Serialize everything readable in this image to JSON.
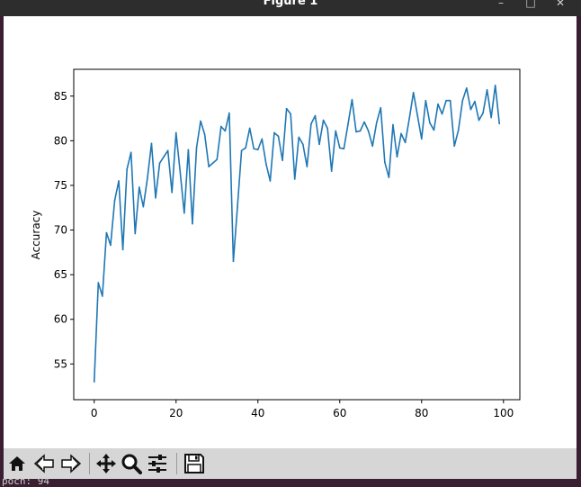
{
  "window": {
    "title": "Figure 1"
  },
  "toolbar": {
    "buttons": [
      {
        "name": "home-button",
        "icon": "home-icon"
      },
      {
        "name": "back-button",
        "icon": "back-arrow-icon"
      },
      {
        "name": "forward-button",
        "icon": "forward-arrow-icon"
      },
      {
        "name": "pan-button",
        "icon": "pan-icon"
      },
      {
        "name": "zoom-button",
        "icon": "magnifier-icon"
      },
      {
        "name": "configure-subplots-button",
        "icon": "sliders-icon"
      },
      {
        "name": "save-button",
        "icon": "floppy-disk-icon"
      }
    ]
  },
  "terminal": {
    "partial_text": "poch: 94"
  },
  "chart_data": {
    "type": "line",
    "title": "",
    "xlabel": "",
    "ylabel": "Accuracy",
    "xlim": [
      -5,
      104
    ],
    "ylim": [
      51,
      88
    ],
    "xticks": [
      0,
      20,
      40,
      60,
      80,
      100
    ],
    "yticks": [
      55,
      60,
      65,
      70,
      75,
      80,
      85
    ],
    "grid": false,
    "line_color": "#1f77b4",
    "series": [
      {
        "x": [
          0,
          1,
          2,
          3,
          4,
          5,
          6,
          7,
          8,
          9,
          10,
          11,
          12,
          13,
          14,
          15,
          16,
          17,
          18,
          19,
          20,
          21,
          22,
          23,
          24,
          25,
          26,
          27,
          28,
          29,
          30,
          31,
          32,
          33,
          34,
          35,
          36,
          37,
          38,
          39,
          40,
          41,
          42,
          43,
          44,
          45,
          46,
          47,
          48,
          49,
          50,
          51,
          52,
          53,
          54,
          55,
          56,
          57,
          58,
          59,
          60,
          61,
          62,
          63,
          64,
          65,
          66,
          67,
          68,
          69,
          70,
          71,
          72,
          73,
          74,
          75,
          76,
          77,
          78,
          79,
          80,
          81,
          82,
          83,
          84,
          85,
          86,
          87,
          88,
          89,
          90,
          91,
          92,
          93,
          94,
          95,
          96,
          97,
          98,
          99
        ],
        "values": [
          53.0,
          64.1,
          62.6,
          69.7,
          68.3,
          73.3,
          75.5,
          67.8,
          76.8,
          78.7,
          69.6,
          74.8,
          72.6,
          75.8,
          79.7,
          73.6,
          77.5,
          78.2,
          78.9,
          74.2,
          80.9,
          76.5,
          71.9,
          79.0,
          70.7,
          79.2,
          82.2,
          80.7,
          77.1,
          77.5,
          77.9,
          81.6,
          81.1,
          83.1,
          66.5,
          72.6,
          78.9,
          79.2,
          81.4,
          79.1,
          79.0,
          80.2,
          77.4,
          75.5,
          80.9,
          80.5,
          77.8,
          83.6,
          83.0,
          75.7,
          80.4,
          79.6,
          77.1,
          81.9,
          82.8,
          79.6,
          82.3,
          81.4,
          76.6,
          81.1,
          79.2,
          79.1,
          81.8,
          84.6,
          81.0,
          81.1,
          82.1,
          81.1,
          79.4,
          82.0,
          83.7,
          77.6,
          75.9,
          81.8,
          78.2,
          80.8,
          79.8,
          82.5,
          85.4,
          82.8,
          80.2,
          84.5,
          82.0,
          81.2,
          84.1,
          83.0,
          84.5,
          84.5,
          79.4,
          81.2,
          84.5,
          85.9,
          83.5,
          84.4,
          82.3,
          83.1,
          85.7,
          82.6,
          86.2,
          81.9
        ]
      }
    ]
  }
}
